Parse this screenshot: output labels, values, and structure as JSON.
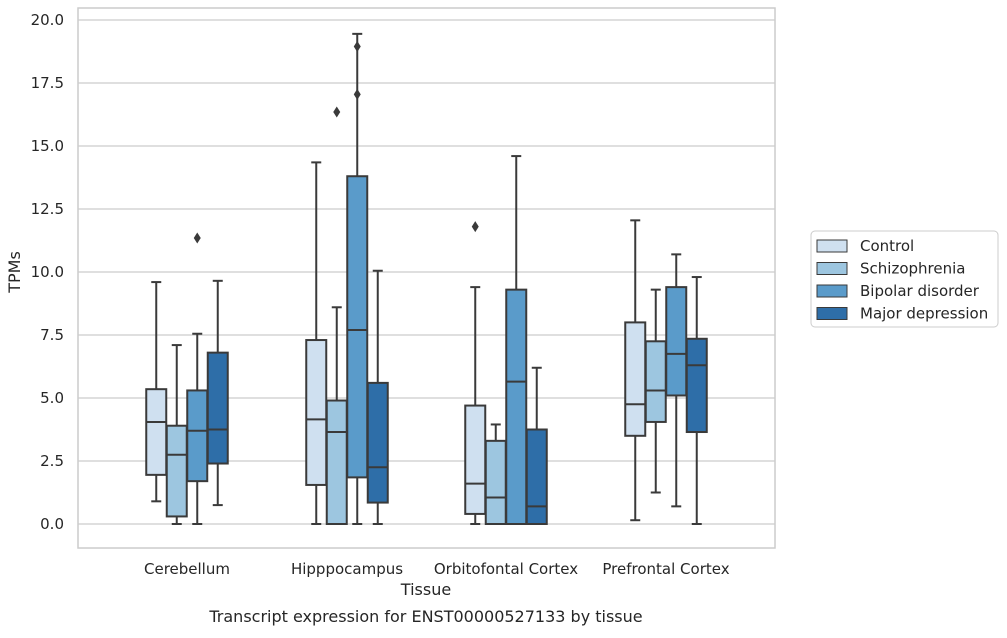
{
  "chart_data": {
    "type": "box",
    "xlabel": "Tissue",
    "ylabel": "TPMs",
    "caption": "Transcript expression for ENST00000527133 by tissue",
    "ylim": [
      -0.9,
      20.5
    ],
    "yticks": [
      0.0,
      2.5,
      5.0,
      7.5,
      10.0,
      12.5,
      15.0,
      17.5,
      20.0
    ],
    "ytick_labels": [
      "0.0",
      "2.5",
      "5.0",
      "7.5",
      "10.0",
      "12.5",
      "15.0",
      "17.5",
      "20.0"
    ],
    "grid": "horizontal",
    "legend_position": "right",
    "categories": [
      "Cerebellum",
      "Hipppocampus",
      "Orbitofontal Cortex",
      "Prefrontal Cortex"
    ],
    "series": [
      {
        "name": "Control",
        "color": "#cfe0f0",
        "boxes": [
          {
            "whislo": 0.9,
            "q1": 1.95,
            "med": 4.05,
            "q3": 5.35,
            "whishi": 9.6,
            "fliers": []
          },
          {
            "whislo": 0.0,
            "q1": 1.55,
            "med": 4.15,
            "q3": 7.3,
            "whishi": 14.35,
            "fliers": []
          },
          {
            "whislo": 0.0,
            "q1": 0.4,
            "med": 1.6,
            "q3": 4.7,
            "whishi": 9.4,
            "fliers": [
              11.8
            ]
          },
          {
            "whislo": 0.15,
            "q1": 3.5,
            "med": 4.75,
            "q3": 8.0,
            "whishi": 12.05,
            "fliers": []
          }
        ]
      },
      {
        "name": "Schizophrenia",
        "color": "#9dc6e0",
        "boxes": [
          {
            "whislo": 0.0,
            "q1": 0.3,
            "med": 2.75,
            "q3": 3.9,
            "whishi": 7.1,
            "fliers": []
          },
          {
            "whislo": 0.0,
            "q1": 0.0,
            "med": 3.65,
            "q3": 4.9,
            "whishi": 8.6,
            "fliers": [
              16.35
            ]
          },
          {
            "whislo": 0.0,
            "q1": 0.0,
            "med": 1.05,
            "q3": 3.3,
            "whishi": 3.95,
            "fliers": []
          },
          {
            "whislo": 1.25,
            "q1": 4.05,
            "med": 5.3,
            "q3": 7.25,
            "whishi": 9.3,
            "fliers": []
          }
        ]
      },
      {
        "name": "Bipolar disorder",
        "color": "#5a9bca",
        "boxes": [
          {
            "whislo": 0.0,
            "q1": 1.7,
            "med": 3.7,
            "q3": 5.3,
            "whishi": 7.55,
            "fliers": [
              11.35
            ]
          },
          {
            "whislo": 0.0,
            "q1": 1.85,
            "med": 7.7,
            "q3": 13.8,
            "whishi": 19.45,
            "fliers": [
              17.05,
              18.95
            ]
          },
          {
            "whislo": 0.0,
            "q1": 0.0,
            "med": 5.65,
            "q3": 9.3,
            "whishi": 14.6,
            "fliers": []
          },
          {
            "whislo": 0.7,
            "q1": 5.1,
            "med": 6.75,
            "q3": 9.4,
            "whishi": 10.7,
            "fliers": []
          }
        ]
      },
      {
        "name": "Major depression",
        "color": "#2e6ea8",
        "boxes": [
          {
            "whislo": 0.75,
            "q1": 2.4,
            "med": 3.75,
            "q3": 6.8,
            "whishi": 9.65,
            "fliers": []
          },
          {
            "whislo": 0.0,
            "q1": 0.85,
            "med": 2.25,
            "q3": 5.6,
            "whishi": 10.05,
            "fliers": []
          },
          {
            "whislo": 0.0,
            "q1": 0.0,
            "med": 0.7,
            "q3": 3.75,
            "whishi": 6.2,
            "fliers": []
          },
          {
            "whislo": 0.0,
            "q1": 3.65,
            "med": 6.3,
            "q3": 7.35,
            "whishi": 9.8,
            "fliers": []
          }
        ]
      }
    ]
  }
}
